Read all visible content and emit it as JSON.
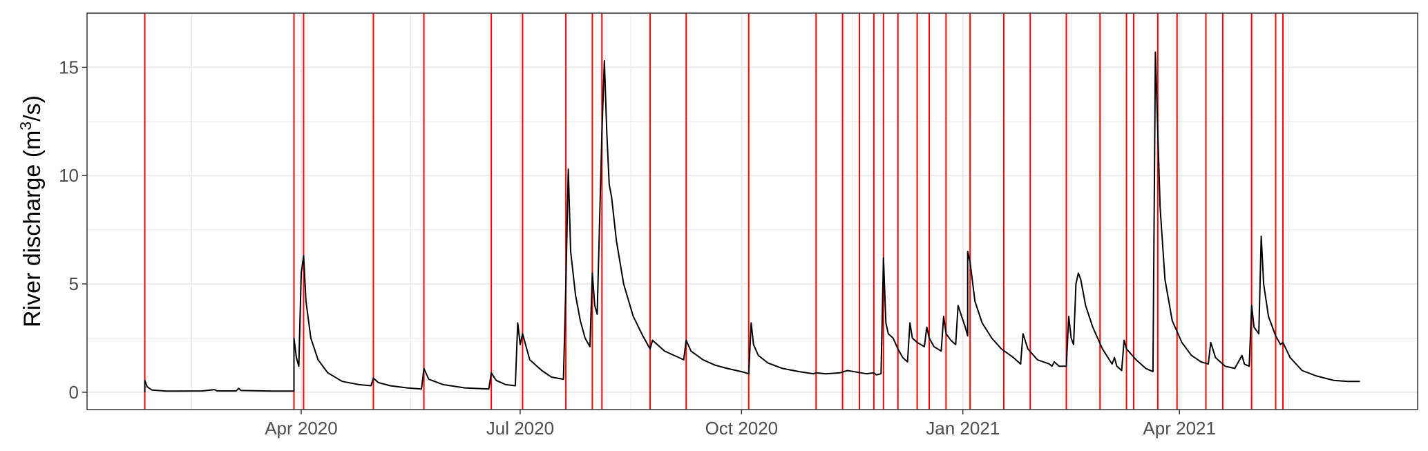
{
  "chart_data": {
    "type": "line",
    "title": "",
    "xlabel": "",
    "ylabel": {
      "prefix": "River discharge (m",
      "superscript": "3",
      "suffix": "/s)"
    },
    "ylim": [
      -0.8,
      17.5
    ],
    "xlim": [
      "2020-01-03",
      "2021-07-09"
    ],
    "y_ticks": [
      0,
      5,
      10,
      15
    ],
    "y_tick_labels": [
      "0",
      "5",
      "10",
      "15"
    ],
    "x_ticks": [
      "2020-04-01",
      "2020-07-01",
      "2020-10-01",
      "2021-01-01",
      "2021-04-01"
    ],
    "x_tick_labels": [
      "Apr 2020",
      "Jul 2020",
      "Oct 2020",
      "Jan 2021",
      "Apr 2021"
    ],
    "grid": true,
    "legend": "none",
    "colors": {
      "discharge": "#000000",
      "event_lines": "#ff0000",
      "grid": "#ebebeb",
      "border": "#333333",
      "tick_text": "#4d4d4d"
    },
    "series": [
      {
        "values": [
          [
            "2020-01-27",
            0.0
          ],
          [
            "2020-01-27",
            0.55
          ],
          [
            "2020-01-28",
            0.25
          ],
          [
            "2020-01-30",
            0.1
          ],
          [
            "2020-02-05",
            0.05
          ],
          [
            "2020-02-20",
            0.06
          ],
          [
            "2020-02-25",
            0.12
          ],
          [
            "2020-02-26",
            0.06
          ],
          [
            "2020-03-05",
            0.06
          ],
          [
            "2020-03-06",
            0.18
          ],
          [
            "2020-03-07",
            0.08
          ],
          [
            "2020-03-20",
            0.05
          ],
          [
            "2020-03-29",
            0.05
          ],
          [
            "2020-03-29",
            2.5
          ],
          [
            "2020-03-30",
            1.6
          ],
          [
            "2020-03-31",
            1.2
          ],
          [
            "2020-04-01",
            5.5
          ],
          [
            "2020-04-02",
            6.3
          ],
          [
            "2020-04-03",
            4.2
          ],
          [
            "2020-04-05",
            2.5
          ],
          [
            "2020-04-08",
            1.5
          ],
          [
            "2020-04-12",
            0.9
          ],
          [
            "2020-04-18",
            0.5
          ],
          [
            "2020-04-25",
            0.35
          ],
          [
            "2020-04-30",
            0.3
          ],
          [
            "2020-05-01",
            0.65
          ],
          [
            "2020-05-03",
            0.45
          ],
          [
            "2020-05-08",
            0.3
          ],
          [
            "2020-05-15",
            0.2
          ],
          [
            "2020-05-21",
            0.15
          ],
          [
            "2020-05-22",
            1.1
          ],
          [
            "2020-05-24",
            0.6
          ],
          [
            "2020-05-30",
            0.35
          ],
          [
            "2020-06-08",
            0.2
          ],
          [
            "2020-06-18",
            0.15
          ],
          [
            "2020-06-19",
            0.9
          ],
          [
            "2020-06-21",
            0.55
          ],
          [
            "2020-06-25",
            0.35
          ],
          [
            "2020-06-29",
            0.3
          ],
          [
            "2020-06-30",
            3.2
          ],
          [
            "2020-07-01",
            2.2
          ],
          [
            "2020-07-02",
            2.7
          ],
          [
            "2020-07-05",
            1.5
          ],
          [
            "2020-07-10",
            1.0
          ],
          [
            "2020-07-14",
            0.7
          ],
          [
            "2020-07-19",
            0.6
          ],
          [
            "2020-07-20",
            5.0
          ],
          [
            "2020-07-21",
            10.3
          ],
          [
            "2020-07-22",
            6.5
          ],
          [
            "2020-07-24",
            4.5
          ],
          [
            "2020-07-26",
            3.3
          ],
          [
            "2020-07-28",
            2.5
          ],
          [
            "2020-07-30",
            2.1
          ],
          [
            "2020-07-31",
            5.5
          ],
          [
            "2020-08-01",
            4.0
          ],
          [
            "2020-08-02",
            3.6
          ],
          [
            "2020-08-04",
            12.0
          ],
          [
            "2020-08-05",
            15.3
          ],
          [
            "2020-08-06",
            12.0
          ],
          [
            "2020-08-07",
            9.6
          ],
          [
            "2020-08-08",
            9.0
          ],
          [
            "2020-08-10",
            7.0
          ],
          [
            "2020-08-13",
            5.0
          ],
          [
            "2020-08-17",
            3.5
          ],
          [
            "2020-08-21",
            2.6
          ],
          [
            "2020-08-24",
            2.0
          ],
          [
            "2020-08-25",
            2.4
          ],
          [
            "2020-08-26",
            2.3
          ],
          [
            "2020-08-30",
            1.9
          ],
          [
            "2020-09-03",
            1.7
          ],
          [
            "2020-09-07",
            1.5
          ],
          [
            "2020-09-08",
            2.4
          ],
          [
            "2020-09-10",
            1.9
          ],
          [
            "2020-09-15",
            1.5
          ],
          [
            "2020-09-20",
            1.25
          ],
          [
            "2020-09-25",
            1.1
          ],
          [
            "2020-10-01",
            0.95
          ],
          [
            "2020-10-04",
            0.85
          ],
          [
            "2020-10-05",
            3.2
          ],
          [
            "2020-10-06",
            2.2
          ],
          [
            "2020-10-08",
            1.7
          ],
          [
            "2020-10-12",
            1.35
          ],
          [
            "2020-10-18",
            1.1
          ],
          [
            "2020-10-25",
            0.95
          ],
          [
            "2020-10-31",
            0.85
          ],
          [
            "2020-11-01",
            0.9
          ],
          [
            "2020-11-05",
            0.85
          ],
          [
            "2020-11-11",
            0.9
          ],
          [
            "2020-11-14",
            1.0
          ],
          [
            "2020-11-22",
            0.85
          ],
          [
            "2020-11-25",
            0.9
          ],
          [
            "2020-11-26",
            0.8
          ],
          [
            "2020-11-28",
            0.85
          ],
          [
            "2020-11-29",
            6.2
          ],
          [
            "2020-11-30",
            3.2
          ],
          [
            "2020-12-01",
            2.7
          ],
          [
            "2020-12-03",
            2.5
          ],
          [
            "2020-12-05",
            2.0
          ],
          [
            "2020-12-07",
            1.6
          ],
          [
            "2020-12-09",
            1.4
          ],
          [
            "2020-12-10",
            3.2
          ],
          [
            "2020-12-11",
            2.5
          ],
          [
            "2020-12-13",
            2.3
          ],
          [
            "2020-12-16",
            2.1
          ],
          [
            "2020-12-17",
            3.0
          ],
          [
            "2020-12-18",
            2.5
          ],
          [
            "2020-12-20",
            2.1
          ],
          [
            "2020-12-23",
            1.9
          ],
          [
            "2020-12-24",
            3.5
          ],
          [
            "2020-12-25",
            2.7
          ],
          [
            "2020-12-27",
            2.4
          ],
          [
            "2020-12-29",
            2.2
          ],
          [
            "2020-12-30",
            4.0
          ],
          [
            "2021-01-02",
            3.0
          ],
          [
            "2021-01-03",
            2.6
          ],
          [
            "2021-01-03",
            6.5
          ],
          [
            "2021-01-04",
            6.0
          ],
          [
            "2021-01-06",
            4.2
          ],
          [
            "2021-01-09",
            3.2
          ],
          [
            "2021-01-13",
            2.5
          ],
          [
            "2021-01-17",
            2.0
          ],
          [
            "2021-01-22",
            1.6
          ],
          [
            "2021-01-25",
            1.3
          ],
          [
            "2021-01-26",
            2.7
          ],
          [
            "2021-01-28",
            2.0
          ],
          [
            "2021-02-01",
            1.5
          ],
          [
            "2021-02-06",
            1.3
          ],
          [
            "2021-02-07",
            1.2
          ],
          [
            "2021-02-08",
            1.4
          ],
          [
            "2021-02-10",
            1.2
          ],
          [
            "2021-02-13",
            1.2
          ],
          [
            "2021-02-14",
            3.5
          ],
          [
            "2021-02-15",
            2.5
          ],
          [
            "2021-02-16",
            2.2
          ],
          [
            "2021-02-17",
            5.0
          ],
          [
            "2021-02-18",
            5.5
          ],
          [
            "2021-02-19",
            5.2
          ],
          [
            "2021-02-21",
            4.0
          ],
          [
            "2021-02-24",
            3.0
          ],
          [
            "2021-02-28",
            2.0
          ],
          [
            "2021-03-04",
            1.3
          ],
          [
            "2021-03-05",
            1.6
          ],
          [
            "2021-03-06",
            1.2
          ],
          [
            "2021-03-08",
            1.0
          ],
          [
            "2021-03-09",
            2.4
          ],
          [
            "2021-03-10",
            2.0
          ],
          [
            "2021-03-14",
            1.5
          ],
          [
            "2021-03-18",
            1.1
          ],
          [
            "2021-03-21",
            0.95
          ],
          [
            "2021-03-22",
            15.7
          ],
          [
            "2021-03-23",
            12.0
          ],
          [
            "2021-03-24",
            8.5
          ],
          [
            "2021-03-26",
            5.2
          ],
          [
            "2021-03-29",
            3.3
          ],
          [
            "2021-04-02",
            2.3
          ],
          [
            "2021-04-06",
            1.7
          ],
          [
            "2021-04-10",
            1.4
          ],
          [
            "2021-04-13",
            1.3
          ],
          [
            "2021-04-14",
            2.3
          ],
          [
            "2021-04-16",
            1.6
          ],
          [
            "2021-04-20",
            1.2
          ],
          [
            "2021-04-24",
            1.1
          ],
          [
            "2021-04-27",
            1.7
          ],
          [
            "2021-04-28",
            1.3
          ],
          [
            "2021-04-30",
            1.2
          ],
          [
            "2021-05-01",
            4.0
          ],
          [
            "2021-05-02",
            3.0
          ],
          [
            "2021-05-04",
            2.7
          ],
          [
            "2021-05-05",
            7.2
          ],
          [
            "2021-05-06",
            5.0
          ],
          [
            "2021-05-08",
            3.5
          ],
          [
            "2021-05-11",
            2.6
          ],
          [
            "2021-05-13",
            2.2
          ],
          [
            "2021-05-14",
            2.3
          ],
          [
            "2021-05-17",
            1.6
          ],
          [
            "2021-05-22",
            1.0
          ],
          [
            "2021-05-28",
            0.75
          ],
          [
            "2021-06-04",
            0.55
          ],
          [
            "2021-06-10",
            0.5
          ],
          [
            "2021-06-15",
            0.5
          ]
        ]
      }
    ],
    "event_lines": [
      "2020-01-27",
      "2020-03-29",
      "2020-04-02",
      "2020-05-01",
      "2020-05-22",
      "2020-06-19",
      "2020-07-02",
      "2020-07-20",
      "2020-07-31",
      "2020-08-04",
      "2020-08-24",
      "2020-09-08",
      "2020-10-04",
      "2020-11-01",
      "2020-11-12",
      "2020-11-19",
      "2020-11-25",
      "2020-11-29",
      "2020-12-05",
      "2020-12-13",
      "2020-12-18",
      "2020-12-25",
      "2021-01-04",
      "2021-01-18",
      "2021-01-29",
      "2021-02-13",
      "2021-02-27",
      "2021-03-10",
      "2021-03-13",
      "2021-03-23",
      "2021-03-31",
      "2021-04-12",
      "2021-04-19",
      "2021-05-01",
      "2021-05-11",
      "2021-05-14"
    ]
  }
}
